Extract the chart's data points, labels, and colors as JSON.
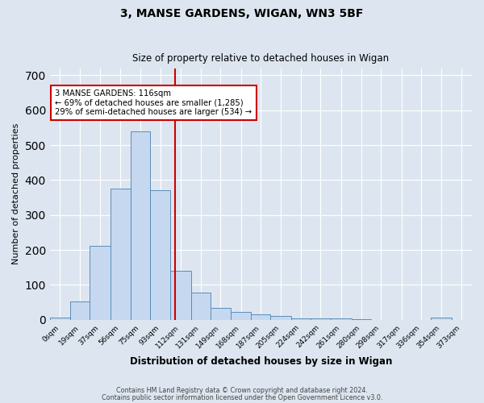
{
  "title1": "3, MANSE GARDENS, WIGAN, WN3 5BF",
  "title2": "Size of property relative to detached houses in Wigan",
  "xlabel": "Distribution of detached houses by size in Wigan",
  "ylabel": "Number of detached properties",
  "bar_labels": [
    "0sqm",
    "19sqm",
    "37sqm",
    "56sqm",
    "75sqm",
    "93sqm",
    "112sqm",
    "131sqm",
    "149sqm",
    "168sqm",
    "187sqm",
    "205sqm",
    "224sqm",
    "242sqm",
    "261sqm",
    "280sqm",
    "298sqm",
    "317sqm",
    "336sqm",
    "354sqm",
    "373sqm"
  ],
  "hist_values": [
    7,
    52,
    212,
    375,
    540,
    370,
    140,
    77,
    35,
    22,
    15,
    10,
    5,
    5,
    4,
    2,
    0,
    0,
    0,
    7,
    0
  ],
  "bin_edges": [
    0,
    19,
    37,
    56,
    75,
    93,
    112,
    131,
    149,
    168,
    187,
    205,
    224,
    242,
    261,
    280,
    298,
    317,
    336,
    354,
    373,
    392
  ],
  "bar_color": "#c5d8f0",
  "bar_edge_color": "#5b8db8",
  "vline_x": 116,
  "vline_color": "#cc0000",
  "annotation_text": "3 MANSE GARDENS: 116sqm\n← 69% of detached houses are smaller (1,285)\n29% of semi-detached houses are larger (534) →",
  "annotation_box_color": "#ffffff",
  "annotation_box_edge": "#cc0000",
  "ylim": [
    0,
    720
  ],
  "yticks": [
    0,
    100,
    200,
    300,
    400,
    500,
    600,
    700
  ],
  "bg_color": "#dde6f0",
  "grid_color": "#ffffff",
  "footer1": "Contains HM Land Registry data © Crown copyright and database right 2024.",
  "footer2": "Contains public sector information licensed under the Open Government Licence v3.0."
}
